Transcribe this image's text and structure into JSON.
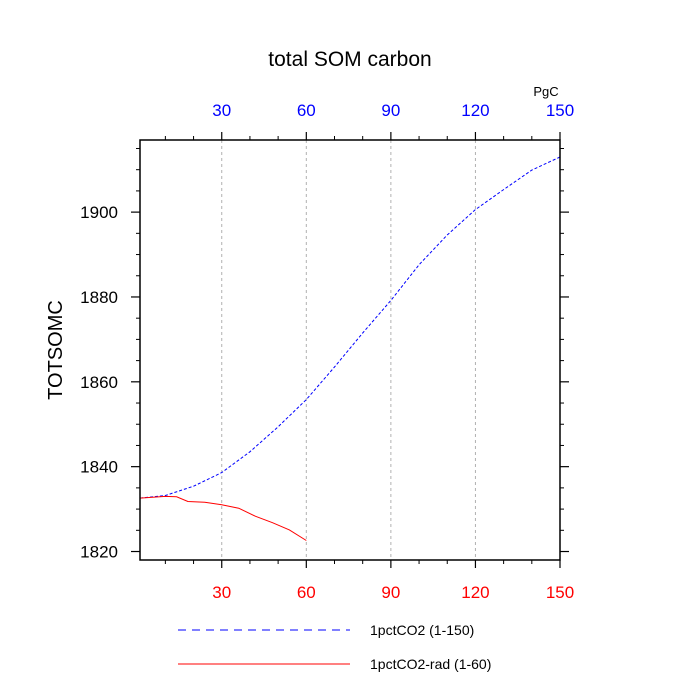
{
  "chart_data": {
    "type": "line",
    "title": "total SOM carbon",
    "ylabel": "TOTSOMC",
    "units_label": "PgC",
    "xlim": [
      1,
      150
    ],
    "ylim": [
      1818,
      1917
    ],
    "yticks": [
      1820,
      1840,
      1860,
      1880,
      1900
    ],
    "xticks": [
      30,
      60,
      90,
      120,
      150
    ],
    "xtick_labels": [
      "30",
      "60",
      "90",
      "120",
      "150"
    ],
    "grid_x": true,
    "bottom_axis_color": "#ff0000",
    "top_axis_color": "#0000ff",
    "series": [
      {
        "name": "1pctCO2 (1-150)",
        "color": "#0000ff",
        "dash": "dashed",
        "x": [
          1,
          10,
          20,
          30,
          40,
          50,
          60,
          70,
          80,
          90,
          100,
          110,
          120,
          130,
          140,
          150
        ],
        "y": [
          1832.6,
          1833.2,
          1835.4,
          1838.6,
          1843.5,
          1849.4,
          1855.8,
          1863.5,
          1871.5,
          1879.2,
          1887.6,
          1894.6,
          1900.6,
          1905.3,
          1909.9,
          1913.0
        ]
      },
      {
        "name": "1pctCO2-rad (1-60)",
        "color": "#ff0000",
        "dash": "solid",
        "x": [
          1,
          10,
          14,
          18,
          24,
          30,
          36,
          42,
          48,
          54,
          60
        ],
        "y": [
          1832.6,
          1833.0,
          1832.9,
          1831.8,
          1831.6,
          1831.0,
          1830.2,
          1828.3,
          1826.8,
          1825.1,
          1822.6
        ]
      }
    ]
  }
}
